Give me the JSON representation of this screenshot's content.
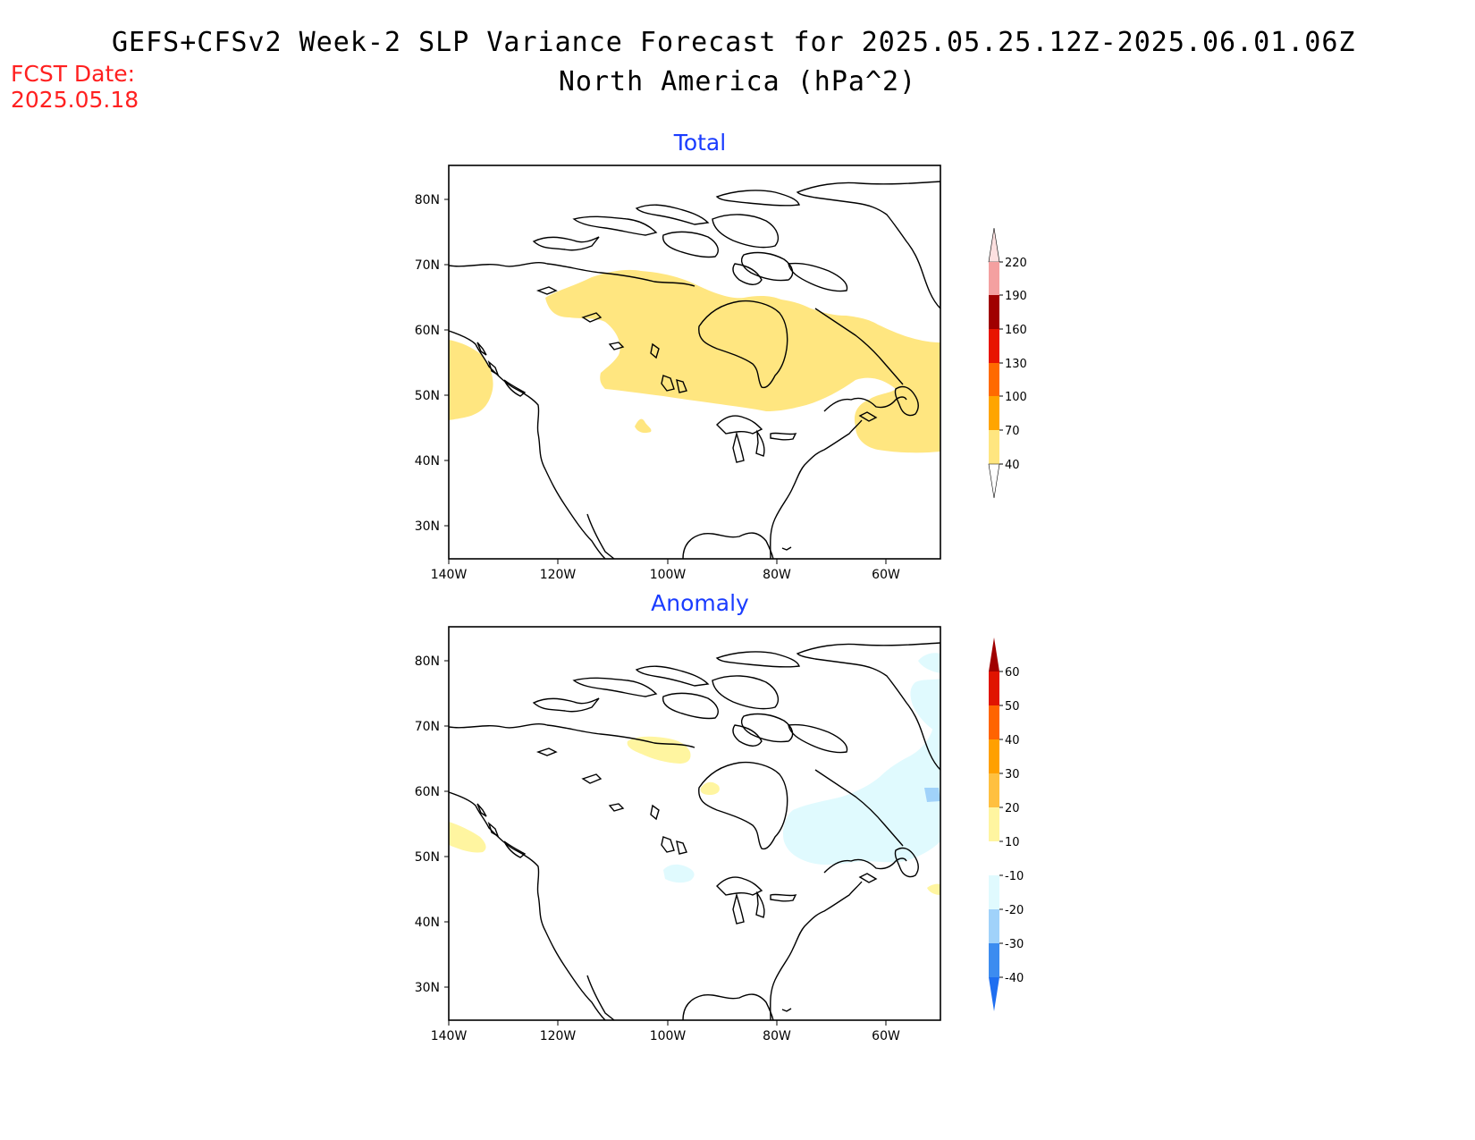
{
  "header": {
    "title": "GEFS+CFSv2 Week-2 SLP Variance Forecast for 2025.05.25.12Z-2025.06.01.06Z",
    "subtitle": "North America (hPa^2)",
    "fcst_label": "FCST Date:",
    "fcst_date": "2025.05.18"
  },
  "colors": {
    "title_text": "#000000",
    "fcst_text": "#ff2020",
    "panel_title": "#1a3cff",
    "land_outline": "#000000"
  },
  "axes": {
    "lat_labels": [
      "80N",
      "70N",
      "60N",
      "50N",
      "40N",
      "30N"
    ],
    "lon_labels": [
      "140W",
      "120W",
      "100W",
      "80W",
      "60W"
    ]
  },
  "panels": [
    {
      "id": "total",
      "title": "Total",
      "colorbar": {
        "labels": [
          "40",
          "70",
          "100",
          "130",
          "160",
          "190",
          "220"
        ],
        "colors": [
          "#ffe680",
          "#ffa500",
          "#ff6a00",
          "#e81400",
          "#a00000",
          "#f4a0a0",
          "#fde0e0"
        ]
      },
      "shaded_regions": [
        {
          "name": "arctic-canada-band",
          "level": "40-70"
        },
        {
          "name": "pacific-coast-patch",
          "level": "40-70"
        },
        {
          "name": "atlantic-canada-patch",
          "level": "40-70"
        },
        {
          "name": "dakota-spot",
          "level": "40-70"
        }
      ]
    },
    {
      "id": "anomaly",
      "title": "Anomaly",
      "colorbar": {
        "labels": [
          "-40",
          "-30",
          "-20",
          "-10",
          "10",
          "20",
          "30",
          "40",
          "50",
          "60"
        ],
        "colors": [
          "#1e6ef0",
          "#3c8cf0",
          "#a0d2fa",
          "#e0fafe",
          "#ffffff",
          "#fff5a0",
          "#ffc040",
          "#ffa000",
          "#ff6400",
          "#e01400",
          "#a00000"
        ]
      },
      "shaded_regions": [
        {
          "name": "hudson-east-negative",
          "level": "-10 to -20"
        },
        {
          "name": "greenland-negative",
          "level": "-10 to -20"
        },
        {
          "name": "labrador-dark-spot",
          "level": "-20 to -30"
        },
        {
          "name": "northwest-territories-positive",
          "level": "10-20"
        },
        {
          "name": "pacific-coast-positive",
          "level": "10-20"
        },
        {
          "name": "hudson-west-positive",
          "level": "10-20"
        },
        {
          "name": "montana-negative",
          "level": "-10 to -20"
        }
      ]
    }
  ]
}
